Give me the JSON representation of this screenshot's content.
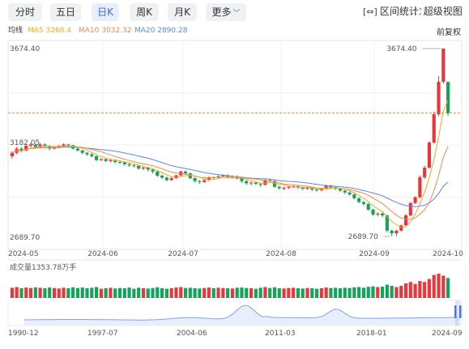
{
  "tabs": [
    {
      "label": "分时",
      "active": false
    },
    {
      "label": "五日",
      "active": false
    },
    {
      "label": "日K",
      "active": true
    },
    {
      "label": "周K",
      "active": false
    },
    {
      "label": "月K",
      "active": false
    },
    {
      "label": "更多",
      "active": false
    }
  ],
  "tools": {
    "range_stats": "区间统计",
    "hd_view": "超级视图"
  },
  "ma": {
    "label": "均线",
    "ma5": "MA5 3268.4",
    "ma10": "MA10 3032.32",
    "ma20": "MA20 2890.28"
  },
  "fq_label": "前复权",
  "colors": {
    "up": "#e8373b",
    "down": "#15a35c",
    "ma5": "#f5a623",
    "ma10": "#f08a4b",
    "ma20": "#5b87e8",
    "current_line": "#f08a3e"
  },
  "price_axis": {
    "top": "3674.40",
    "mid": "3182.05",
    "bottom": "2689.70"
  },
  "annotations": {
    "high": "3674.40",
    "low": "2689.70"
  },
  "date_axis": [
    "2024-05",
    "2024-06",
    "2024-07",
    "2024-08",
    "2024-09",
    "2024-10"
  ],
  "volume": {
    "label": "成交量1353.78万手"
  },
  "navigator": {
    "dates": [
      "1990-12",
      "1997-07",
      "2004-06",
      "2011-03",
      "2018-01",
      "2024-09"
    ]
  },
  "chart_data": {
    "type": "candlestick",
    "y_range": [
      2689.7,
      3674.4
    ],
    "current_price": 3336.5,
    "candles": [
      [
        3110,
        3128,
        3098,
        3135
      ],
      [
        3128,
        3150,
        3120,
        3160
      ],
      [
        3150,
        3140,
        3130,
        3158
      ],
      [
        3140,
        3165,
        3135,
        3172
      ],
      [
        3165,
        3170,
        3155,
        3180
      ],
      [
        3170,
        3158,
        3150,
        3178
      ],
      [
        3158,
        3172,
        3150,
        3180
      ],
      [
        3172,
        3162,
        3155,
        3178
      ],
      [
        3162,
        3150,
        3140,
        3168
      ],
      [
        3150,
        3158,
        3145,
        3165
      ],
      [
        3158,
        3165,
        3152,
        3170
      ],
      [
        3165,
        3172,
        3160,
        3178
      ],
      [
        3172,
        3168,
        3160,
        3176
      ],
      [
        3168,
        3150,
        3145,
        3170
      ],
      [
        3150,
        3140,
        3135,
        3155
      ],
      [
        3140,
        3128,
        3120,
        3145
      ],
      [
        3128,
        3120,
        3112,
        3132
      ],
      [
        3120,
        3110,
        3104,
        3126
      ],
      [
        3110,
        3090,
        3084,
        3115
      ],
      [
        3090,
        3095,
        3085,
        3100
      ],
      [
        3095,
        3085,
        3080,
        3100
      ],
      [
        3085,
        3090,
        3078,
        3096
      ],
      [
        3090,
        3080,
        3072,
        3095
      ],
      [
        3080,
        3078,
        3070,
        3088
      ],
      [
        3078,
        3068,
        3060,
        3082
      ],
      [
        3068,
        3062,
        3055,
        3074
      ],
      [
        3062,
        3060,
        3050,
        3068
      ],
      [
        3060,
        3045,
        3040,
        3065
      ],
      [
        3045,
        3050,
        3038,
        3055
      ],
      [
        3050,
        3040,
        3030,
        3056
      ],
      [
        3040,
        3030,
        3020,
        3045
      ],
      [
        3030,
        3008,
        3002,
        3036
      ],
      [
        3008,
        2998,
        2990,
        3015
      ],
      [
        2998,
        2985,
        2978,
        3004
      ],
      [
        2985,
        2995,
        2980,
        3002
      ],
      [
        2995,
        3010,
        2990,
        3014
      ],
      [
        3010,
        3030,
        3004,
        3035
      ],
      [
        3030,
        3020,
        3012,
        3036
      ],
      [
        3020,
        2995,
        2990,
        3025
      ],
      [
        2995,
        2980,
        2972,
        3000
      ],
      [
        2980,
        2975,
        2966,
        2986
      ],
      [
        2975,
        2985,
        2970,
        2990
      ],
      [
        2985,
        3000,
        2980,
        3005
      ],
      [
        3000,
        2998,
        2990,
        3004
      ],
      [
        2998,
        3005,
        2994,
        3010
      ],
      [
        3005,
        3010,
        2998,
        3015
      ],
      [
        3010,
        3000,
        2995,
        3016
      ],
      [
        3000,
        3005,
        2994,
        3010
      ],
      [
        3005,
        2995,
        2988,
        3010
      ],
      [
        2995,
        2980,
        2970,
        2998
      ],
      [
        2980,
        2968,
        2960,
        2985
      ],
      [
        2968,
        2972,
        2958,
        2978
      ],
      [
        2972,
        2965,
        2960,
        2976
      ],
      [
        2965,
        2960,
        2950,
        2970
      ],
      [
        2960,
        2985,
        2956,
        2990
      ],
      [
        2985,
        2980,
        2972,
        2992
      ],
      [
        2980,
        2950,
        2945,
        2984
      ],
      [
        2950,
        2942,
        2935,
        2955
      ],
      [
        2942,
        2945,
        2932,
        2950
      ],
      [
        2945,
        2950,
        2938,
        2956
      ],
      [
        2950,
        2952,
        2944,
        2958
      ],
      [
        2952,
        2945,
        2938,
        2958
      ],
      [
        2945,
        2940,
        2932,
        2950
      ],
      [
        2940,
        2945,
        2935,
        2950
      ],
      [
        2945,
        2935,
        2928,
        2950
      ],
      [
        2935,
        2932,
        2925,
        2940
      ],
      [
        2932,
        2938,
        2926,
        2942
      ],
      [
        2938,
        2955,
        2934,
        2960
      ],
      [
        2955,
        2948,
        2940,
        2960
      ],
      [
        2948,
        2940,
        2932,
        2952
      ],
      [
        2940,
        2930,
        2922,
        2944
      ],
      [
        2930,
        2920,
        2912,
        2934
      ],
      [
        2920,
        2910,
        2902,
        2925
      ],
      [
        2910,
        2890,
        2884,
        2914
      ],
      [
        2890,
        2870,
        2864,
        2895
      ],
      [
        2870,
        2860,
        2850,
        2875
      ],
      [
        2860,
        2830,
        2825,
        2865
      ],
      [
        2830,
        2805,
        2798,
        2835
      ],
      [
        2805,
        2810,
        2795,
        2815
      ],
      [
        2810,
        2800,
        2790,
        2816
      ],
      [
        2800,
        2720,
        2710,
        2805
      ],
      [
        2720,
        2706,
        2690,
        2725
      ],
      [
        2706,
        2720,
        2690,
        2725
      ],
      [
        2720,
        2748,
        2716,
        2752
      ],
      [
        2748,
        2800,
        2745,
        2808
      ],
      [
        2800,
        2865,
        2795,
        2870
      ],
      [
        2865,
        2895,
        2860,
        2900
      ],
      [
        2895,
        3000,
        2890,
        3010
      ],
      [
        3000,
        3050,
        2990,
        3060
      ],
      [
        3050,
        3182,
        3045,
        3190
      ],
      [
        3182,
        3330,
        3175,
        3345
      ],
      [
        3330,
        3500,
        3320,
        3530
      ],
      [
        3500,
        3674.4,
        3490,
        3674.4
      ],
      [
        3500,
        3336.5,
        3320,
        3500
      ]
    ],
    "volumes": [
      0.42,
      0.45,
      0.4,
      0.43,
      0.41,
      0.44,
      0.42,
      0.4,
      0.43,
      0.41,
      0.39,
      0.42,
      0.4,
      0.44,
      0.41,
      0.43,
      0.4,
      0.42,
      0.45,
      0.38,
      0.4,
      0.42,
      0.39,
      0.41,
      0.4,
      0.43,
      0.38,
      0.42,
      0.4,
      0.39,
      0.41,
      0.44,
      0.4,
      0.38,
      0.4,
      0.43,
      0.45,
      0.41,
      0.42,
      0.4,
      0.39,
      0.41,
      0.43,
      0.4,
      0.42,
      0.41,
      0.4,
      0.39,
      0.42,
      0.43,
      0.41,
      0.4,
      0.38,
      0.42,
      0.45,
      0.41,
      0.44,
      0.4,
      0.39,
      0.41,
      0.42,
      0.4,
      0.39,
      0.41,
      0.4,
      0.38,
      0.4,
      0.43,
      0.41,
      0.42,
      0.4,
      0.42,
      0.41,
      0.44,
      0.45,
      0.42,
      0.46,
      0.48,
      0.45,
      0.47,
      0.55,
      0.5,
      0.45,
      0.5,
      0.6,
      0.66,
      0.58,
      0.7,
      0.66,
      0.78,
      0.95,
      1.0,
      0.92,
      0.82
    ]
  }
}
